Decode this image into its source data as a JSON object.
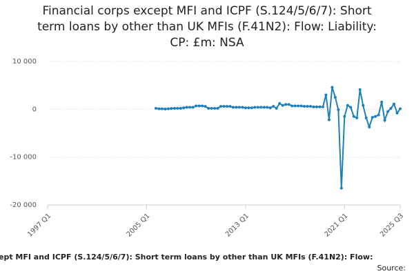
{
  "chart_data": {
    "type": "line",
    "title": [
      "Financial corps except MFI and ICPF (S.124/5/6/7): Short",
      "term loans by other than UK MFIs (F.41N2): Flow: Liability:",
      "CP: £m: NSA"
    ],
    "footer": "ept MFI and ICPF (S.124/5/6/7): Short term loans by other than UK MFIs (F.41N2): Flow:",
    "source": "Source:",
    "x": [
      2005.75,
      2006,
      2006.25,
      2006.5,
      2006.75,
      2007,
      2007.25,
      2007.5,
      2007.75,
      2008,
      2008.25,
      2008.5,
      2008.75,
      2009,
      2009.25,
      2009.5,
      2009.75,
      2010,
      2010.25,
      2010.5,
      2010.75,
      2011,
      2011.25,
      2011.5,
      2011.75,
      2012,
      2012.25,
      2012.5,
      2012.75,
      2013,
      2013.25,
      2013.5,
      2013.75,
      2014,
      2014.25,
      2014.5,
      2014.75,
      2015,
      2015.25,
      2015.5,
      2015.75,
      2016,
      2016.25,
      2016.5,
      2016.75,
      2017,
      2017.25,
      2017.5,
      2017.75,
      2018,
      2018.25,
      2018.5,
      2018.75,
      2019,
      2019.25,
      2019.5,
      2019.75,
      2020,
      2020.25,
      2020.5,
      2020.75,
      2021,
      2021.25,
      2021.5,
      2021.75,
      2022,
      2022.25,
      2022.5,
      2022.75,
      2023,
      2023.25,
      2023.5,
      2023.75,
      2024,
      2024.25,
      2024.5,
      2024.75,
      2025,
      2025.25,
      2025.5
    ],
    "series": [
      {
        "name": "Value",
        "color": "#1f7fb8",
        "values": [
          200,
          100,
          100,
          50,
          100,
          150,
          200,
          200,
          200,
          300,
          400,
          400,
          400,
          700,
          700,
          700,
          600,
          200,
          200,
          200,
          200,
          600,
          600,
          600,
          600,
          400,
          400,
          400,
          400,
          300,
          300,
          300,
          400,
          400,
          400,
          400,
          400,
          300,
          600,
          200,
          1200,
          800,
          1000,
          1000,
          700,
          700,
          700,
          700,
          600,
          600,
          600,
          500,
          500,
          500,
          500,
          3000,
          -2200,
          4600,
          2500,
          -100,
          -16500,
          -1500,
          800,
          400,
          -1500,
          -1800,
          4100,
          800,
          -1800,
          -3700,
          -1700,
          -1500,
          -1200,
          1500,
          -2300,
          -500,
          200,
          1100,
          -800,
          100
        ]
      }
    ],
    "xlim": [
      1997,
      2025.5
    ],
    "xticks": [
      {
        "value": 1997,
        "label": "1997 Q1"
      },
      {
        "value": 2005,
        "label": "2005 Q1"
      },
      {
        "value": 2013,
        "label": "2013 Q1"
      },
      {
        "value": 2021,
        "label": "2021 Q1"
      },
      {
        "value": 2025.5,
        "label": "2025 Q3"
      }
    ],
    "ylim": [
      -20000,
      10000
    ],
    "yticks": [
      {
        "value": 10000,
        "label": "10 000"
      },
      0,
      {
        "value": -10000,
        "label": "-10 000"
      },
      {
        "value": -20000,
        "label": "-20 000"
      }
    ],
    "grid": true
  }
}
